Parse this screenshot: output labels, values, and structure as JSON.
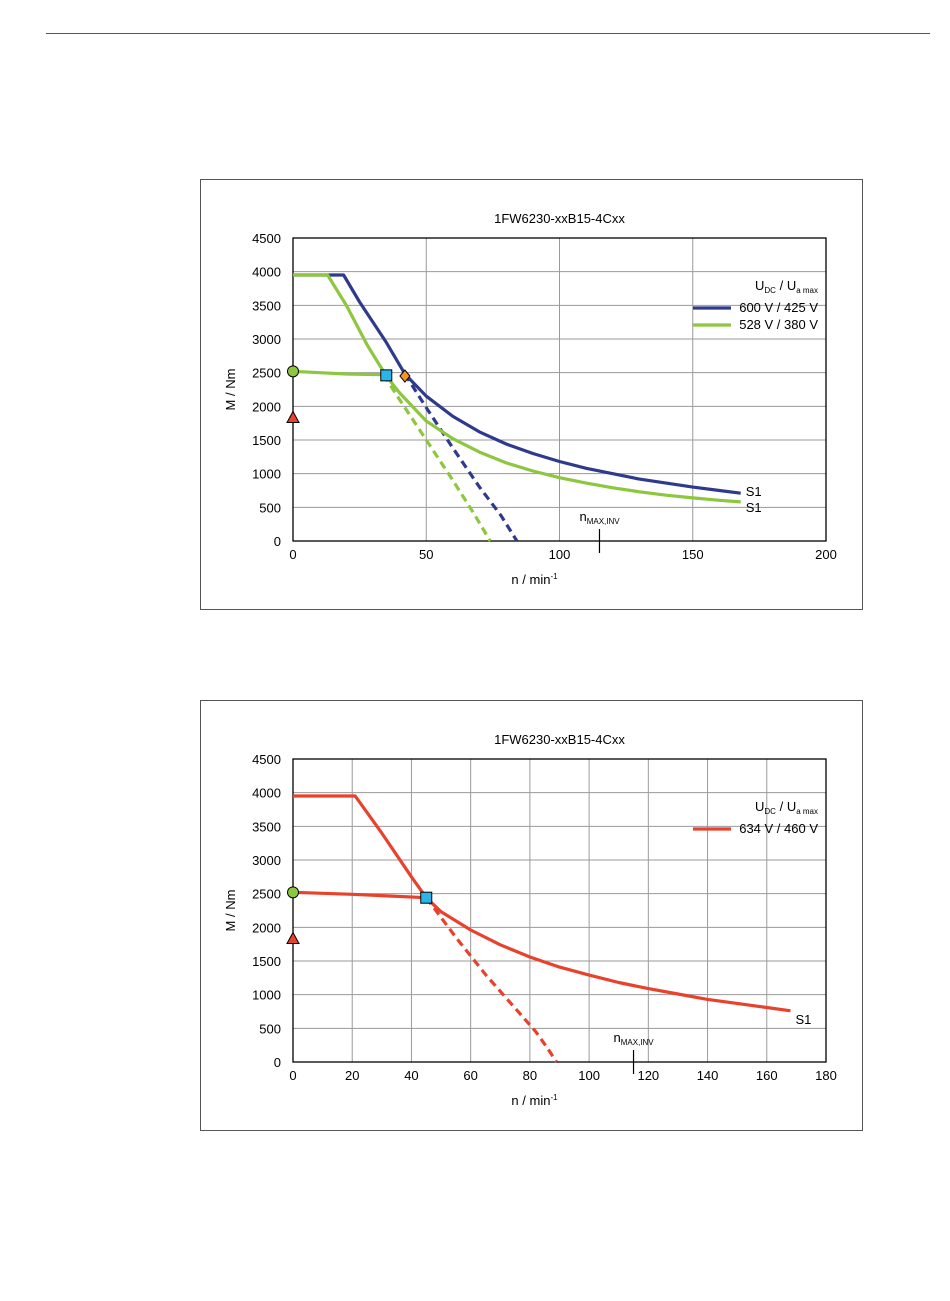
{
  "chart_data": [
    {
      "type": "line",
      "title": "1FW6230-xxB15-4Cxx",
      "xlabel": "n / min",
      "xlabel_sup": "-1",
      "ylabel": "M / Nm",
      "xlim": [
        0,
        200
      ],
      "ylim": [
        0,
        4500
      ],
      "xticks": [
        0,
        50,
        100,
        150,
        200
      ],
      "yticks": [
        0,
        500,
        1000,
        1500,
        2000,
        2500,
        3000,
        3500,
        4000,
        4500
      ],
      "grid": true,
      "legend": {
        "placement": "top-right",
        "header_main_1": "U",
        "header_sub_1": "DC",
        "header_sep": "  /  ",
        "header_main_2": "U",
        "header_sub_2": "a max"
      },
      "series": [
        {
          "name": "600 V / 425 V",
          "color": "#2e3a8c",
          "solid": [
            [
              0,
              3950
            ],
            [
              19,
              3950
            ],
            [
              25,
              3550
            ],
            [
              35,
              2950
            ],
            [
              42,
              2480
            ],
            [
              50,
              2150
            ],
            [
              60,
              1850
            ],
            [
              70,
              1620
            ],
            [
              80,
              1440
            ],
            [
              90,
              1300
            ],
            [
              100,
              1180
            ],
            [
              110,
              1080
            ],
            [
              120,
              1000
            ],
            [
              130,
              920
            ],
            [
              140,
              860
            ],
            [
              150,
              800
            ],
            [
              160,
              750
            ],
            [
              168,
              710
            ]
          ],
          "dashed": [
            [
              42,
              2480
            ],
            [
              50,
              1980
            ],
            [
              60,
              1380
            ],
            [
              70,
              800
            ],
            [
              78,
              380
            ],
            [
              84,
              0
            ]
          ],
          "end_label": "S1"
        },
        {
          "name": "528 V / 380 V",
          "color": "#8dc63f",
          "solid": [
            [
              0,
              3950
            ],
            [
              13,
              3950
            ],
            [
              20,
              3500
            ],
            [
              28,
              2900
            ],
            [
              35,
              2450
            ],
            [
              40,
              2200
            ],
            [
              50,
              1780
            ],
            [
              60,
              1520
            ],
            [
              70,
              1320
            ],
            [
              80,
              1160
            ],
            [
              90,
              1040
            ],
            [
              100,
              940
            ],
            [
              110,
              860
            ],
            [
              120,
              790
            ],
            [
              130,
              730
            ],
            [
              140,
              680
            ],
            [
              150,
              640
            ],
            [
              160,
              605
            ],
            [
              168,
              580
            ]
          ],
          "lower_solid": [
            [
              0,
              2520
            ],
            [
              10,
              2500
            ],
            [
              20,
              2480
            ],
            [
              34,
              2470
            ]
          ],
          "dashed": [
            [
              34,
              2470
            ],
            [
              40,
              2100
            ],
            [
              50,
              1500
            ],
            [
              60,
              900
            ],
            [
              68,
              400
            ],
            [
              74,
              0
            ]
          ],
          "end_label": "S1"
        }
      ],
      "markers": [
        {
          "shape": "circle",
          "x": 0,
          "y": 2520,
          "color": "#8dc63f"
        },
        {
          "shape": "triangle",
          "x": 0,
          "y": 1820,
          "color": "#e8412c"
        },
        {
          "shape": "square",
          "x": 35,
          "y": 2460,
          "color": "#29b5e8"
        },
        {
          "shape": "diamond",
          "x": 42,
          "y": 2450,
          "color": "#f7941d"
        }
      ],
      "annotation": {
        "text_main": "n",
        "text_sub": "MAX,INV",
        "x": 115
      }
    },
    {
      "type": "line",
      "title": "1FW6230-xxB15-4Cxx",
      "xlabel": "n / min",
      "xlabel_sup": "-1",
      "ylabel": "M / Nm",
      "xlim": [
        0,
        180
      ],
      "ylim": [
        0,
        4500
      ],
      "xticks": [
        0,
        20,
        40,
        60,
        80,
        100,
        120,
        140,
        160,
        180
      ],
      "yticks": [
        0,
        500,
        1000,
        1500,
        2000,
        2500,
        3000,
        3500,
        4000,
        4500
      ],
      "grid": true,
      "legend": {
        "placement": "top-right",
        "header_main_1": "U",
        "header_sub_1": "DC",
        "header_sep": "  /  ",
        "header_main_2": "U",
        "header_sub_2": "a max"
      },
      "series": [
        {
          "name": "634 V / 460 V",
          "color": "#e8412c",
          "solid": [
            [
              0,
              3950
            ],
            [
              21,
              3950
            ],
            [
              30,
              3400
            ],
            [
              40,
              2750
            ],
            [
              45,
              2440
            ],
            [
              50,
              2230
            ],
            [
              60,
              1960
            ],
            [
              70,
              1740
            ],
            [
              80,
              1560
            ],
            [
              90,
              1410
            ],
            [
              100,
              1290
            ],
            [
              110,
              1180
            ],
            [
              120,
              1090
            ],
            [
              130,
              1010
            ],
            [
              140,
              930
            ],
            [
              150,
              870
            ],
            [
              160,
              810
            ],
            [
              168,
              760
            ]
          ],
          "lower_solid": [
            [
              0,
              2520
            ],
            [
              20,
              2490
            ],
            [
              45,
              2440
            ]
          ],
          "dashed": [
            [
              45,
              2440
            ],
            [
              55,
              1850
            ],
            [
              65,
              1300
            ],
            [
              75,
              800
            ],
            [
              82,
              450
            ],
            [
              86,
              200
            ],
            [
              89,
              0
            ]
          ],
          "end_label": "S1"
        }
      ],
      "markers": [
        {
          "shape": "circle",
          "x": 0,
          "y": 2520,
          "color": "#8dc63f"
        },
        {
          "shape": "triangle",
          "x": 0,
          "y": 1820,
          "color": "#e8412c"
        },
        {
          "shape": "square",
          "x": 45,
          "y": 2440,
          "color": "#29b5e8"
        }
      ],
      "annotation": {
        "text_main": "n",
        "text_sub": "MAX,INV",
        "x": 115
      }
    }
  ]
}
